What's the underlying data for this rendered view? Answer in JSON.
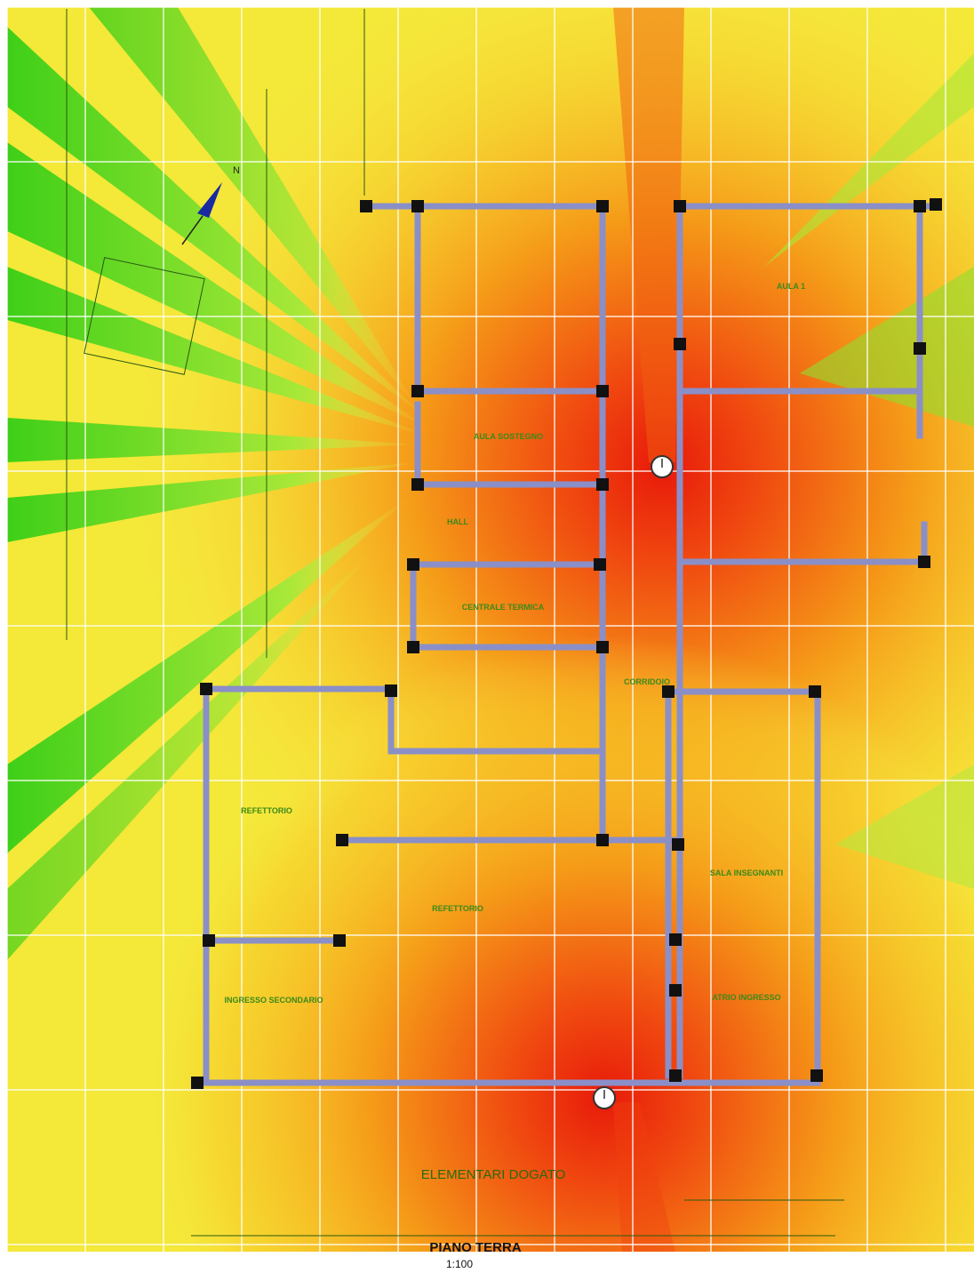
{
  "plan": {
    "title": "ELEMENTARI DOGATO",
    "floor": "PIANO TERRA",
    "scale": "1:100",
    "north": "N",
    "rooms": [
      "AULA 1",
      "AULA SOSTEGNO",
      "CENTRALE TERMICA",
      "CORRIDOIO",
      "REFETTORIO",
      "REFETTORIO",
      "SALA INSEGNANTI",
      "ATRIO INGRESSO",
      "INGRESSO SECONDARIO",
      "HALL"
    ]
  }
}
